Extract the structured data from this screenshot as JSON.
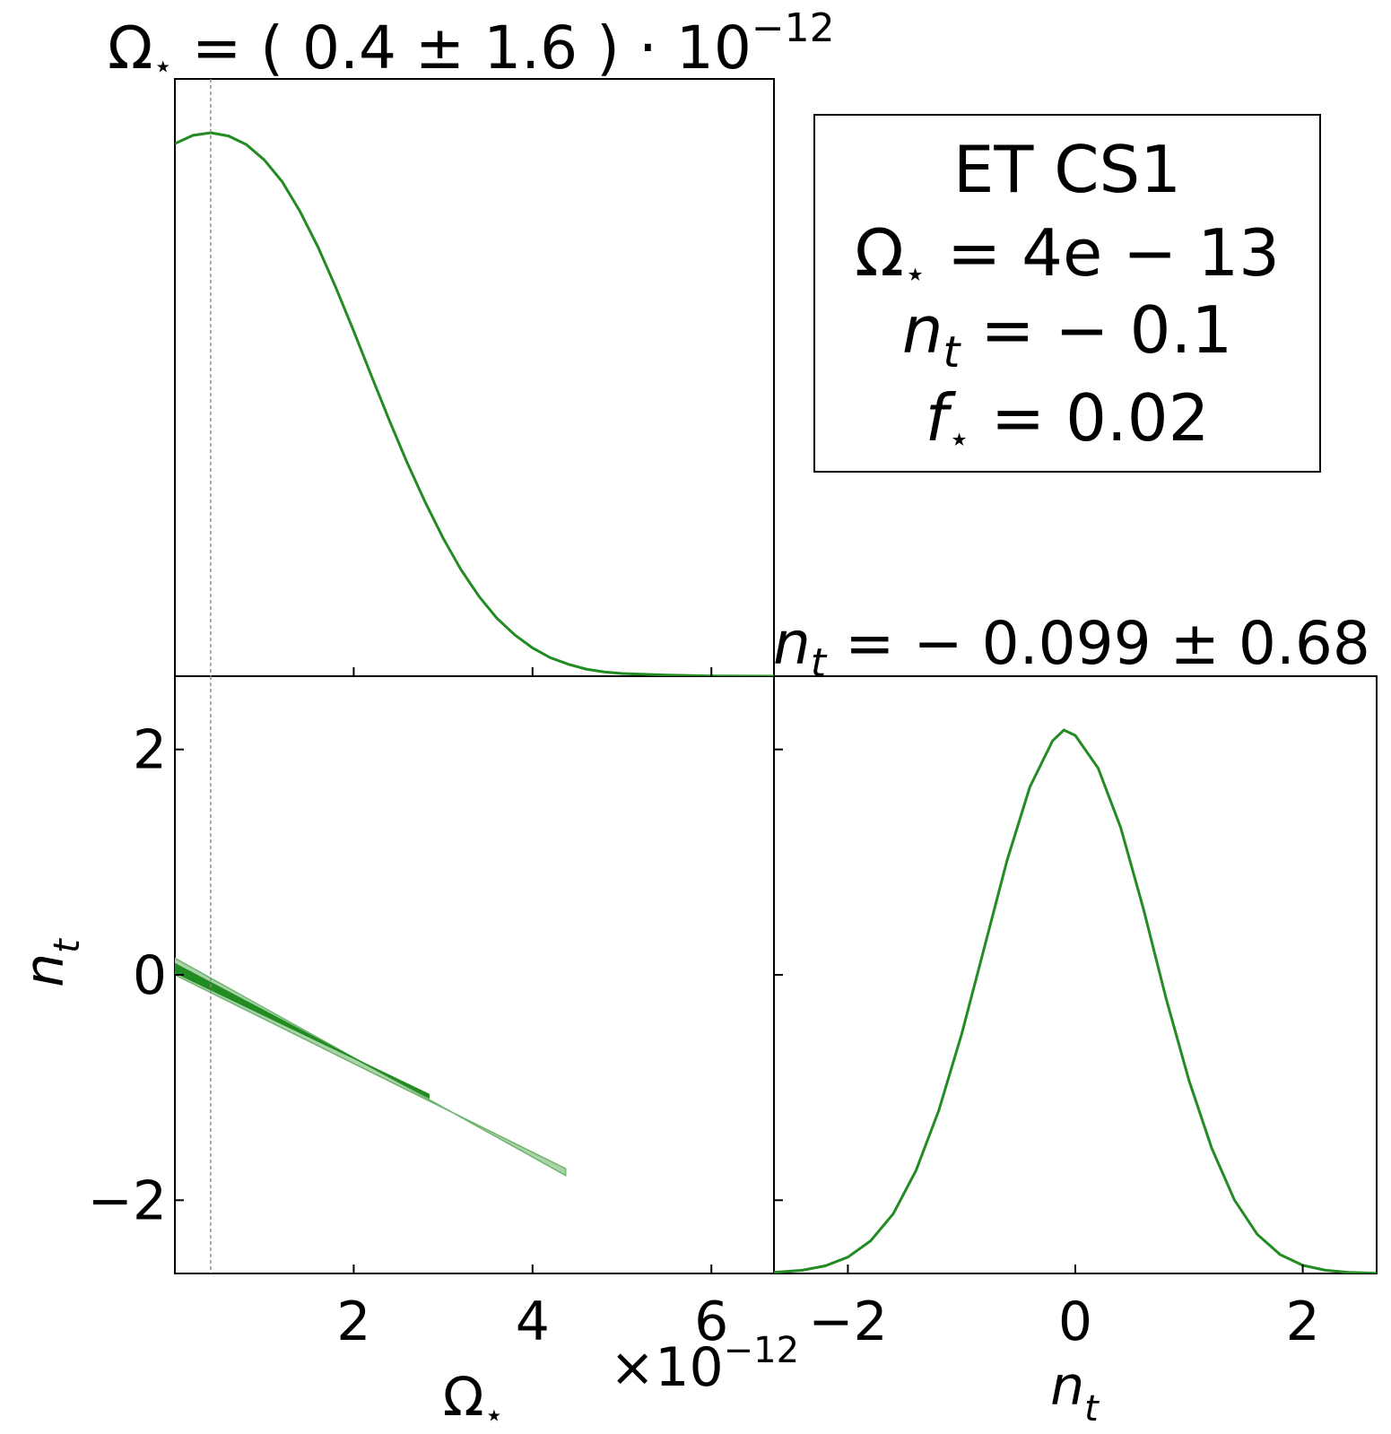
{
  "legend": {
    "label": "ET CS1",
    "omega": {
      "sym": "Ω",
      "sub": "⋆",
      "eq": " = 4e − 13"
    },
    "nt": {
      "sym": "n",
      "sub": "t",
      "eq": " = − 0.1"
    },
    "fstar": {
      "sym": "f",
      "sub": "⋆",
      "eq": " = 0.02"
    }
  },
  "chart_data": {
    "type": "corner",
    "color": "#228b22",
    "fill_light": "#a9d4a9",
    "fill_dark": "#228b22",
    "parameters": [
      {
        "symbol": "Ω",
        "subscript": "⋆",
        "title_eq": " = ( 0.4 ± 1.6 ) · 10",
        "title_exp": "−12",
        "offset_base": "×10",
        "offset_exp": "−12",
        "range": [
          0,
          6.7
        ],
        "ticks": [
          2,
          4,
          6
        ],
        "tick_labels": [
          "2",
          "4",
          "6"
        ],
        "injected": 0.4
      },
      {
        "symbol": "n",
        "subscript": "t",
        "title_eq": " = − 0.099 ± 0.68",
        "range": [
          -2.65,
          2.65
        ],
        "ticks": [
          -2,
          0,
          2
        ],
        "tick_labels": [
          "−2",
          "0",
          "2"
        ],
        "injected": -0.1
      }
    ],
    "marginal_omega": {
      "x": [
        0,
        0.2,
        0.4,
        0.6,
        0.8,
        1.0,
        1.2,
        1.4,
        1.6,
        1.8,
        2.0,
        2.2,
        2.4,
        2.6,
        2.8,
        3.0,
        3.2,
        3.4,
        3.6,
        3.8,
        4.0,
        4.2,
        4.4,
        4.6,
        4.8,
        5.0,
        5.5,
        6.0,
        6.7
      ],
      "y": [
        0.98,
        0.995,
        1.0,
        0.994,
        0.978,
        0.95,
        0.91,
        0.855,
        0.79,
        0.715,
        0.635,
        0.552,
        0.47,
        0.392,
        0.32,
        0.254,
        0.196,
        0.147,
        0.107,
        0.076,
        0.052,
        0.034,
        0.022,
        0.013,
        0.008,
        0.005,
        0.002,
        0.0005,
        0
      ]
    },
    "marginal_nt": {
      "x": [
        -2.65,
        -2.4,
        -2.2,
        -2.0,
        -1.8,
        -1.6,
        -1.4,
        -1.2,
        -1.0,
        -0.8,
        -0.6,
        -0.4,
        -0.2,
        -0.1,
        0,
        0.2,
        0.4,
        0.6,
        0.8,
        1.0,
        1.2,
        1.4,
        1.6,
        1.8,
        2.0,
        2.2,
        2.4,
        2.65
      ],
      "y": [
        0.002,
        0.006,
        0.014,
        0.03,
        0.06,
        0.11,
        0.19,
        0.3,
        0.44,
        0.6,
        0.76,
        0.895,
        0.98,
        1.0,
        0.99,
        0.93,
        0.82,
        0.67,
        0.505,
        0.355,
        0.23,
        0.135,
        0.072,
        0.035,
        0.015,
        0.006,
        0.002,
        0.0004
      ]
    },
    "contours": {
      "outer": [
        [
          -0.05,
          0.17
        ],
        [
          4.37,
          -1.78
        ],
        [
          4.37,
          -1.72
        ],
        [
          -0.05,
          0.02
        ]
      ],
      "inner": [
        [
          -0.05,
          0.12
        ],
        [
          2.84,
          -1.09
        ],
        [
          2.84,
          -1.06
        ],
        [
          -0.05,
          0.04
        ]
      ]
    }
  }
}
